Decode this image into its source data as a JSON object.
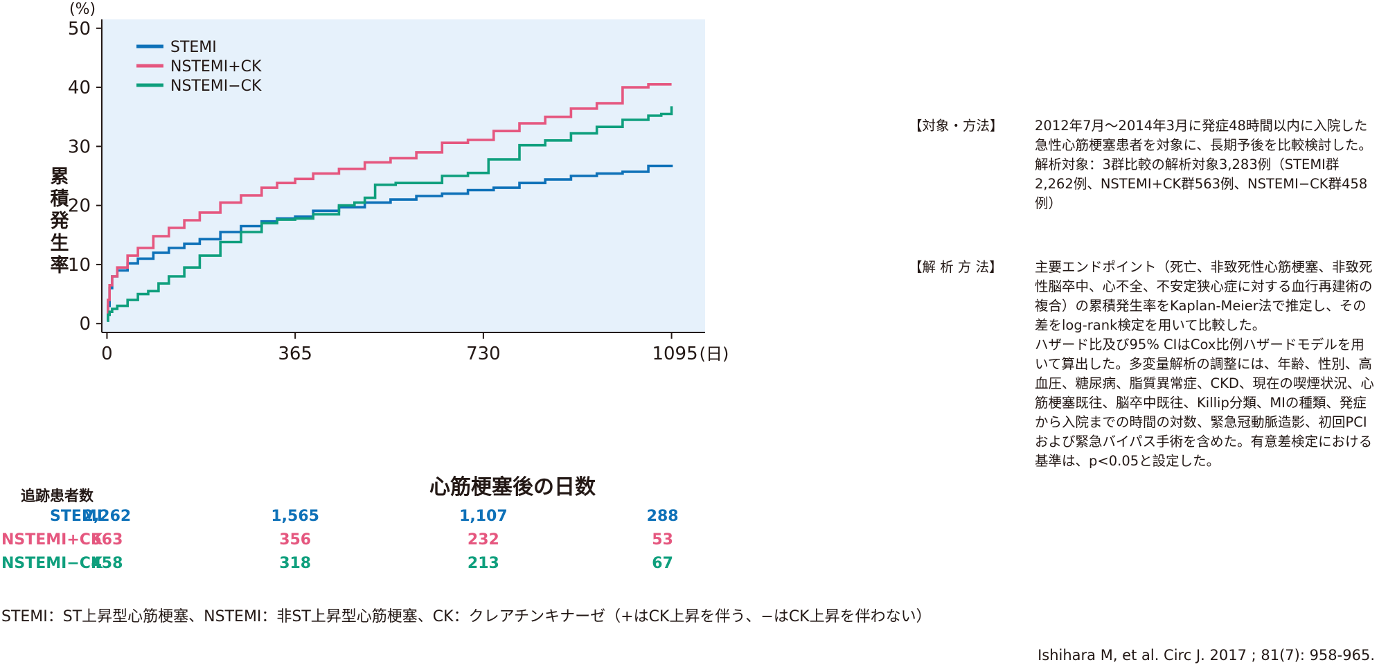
{
  "chart_data": {
    "type": "line",
    "ylabel": "累積発生率",
    "yunit": "(%)",
    "xlabel": "心筋梗塞後の日数",
    "xunit": "(日)",
    "xticks": [
      0,
      365,
      730,
      1095
    ],
    "yticks": [
      0,
      10,
      20,
      30,
      40,
      50
    ],
    "xlim": [
      -10,
      1160
    ],
    "ylim": [
      -1.5,
      51.5
    ],
    "grid": false,
    "legend": "top-left",
    "plot_background": "#e6f1fb",
    "series": [
      {
        "name": "STEMI",
        "color": "#0e71b8",
        "x": [
          0,
          2,
          5,
          10,
          20,
          40,
          60,
          90,
          120,
          150,
          180,
          220,
          260,
          300,
          330,
          365,
          400,
          450,
          500,
          550,
          600,
          650,
          700,
          750,
          800,
          850,
          900,
          950,
          1000,
          1050,
          1095
        ],
        "y": [
          0.5,
          3,
          6,
          8,
          9,
          10.2,
          11,
          12,
          12.8,
          13.5,
          14.3,
          15.5,
          16.5,
          17.3,
          17.8,
          18.1,
          19.1,
          19.7,
          20.5,
          21,
          21.6,
          22,
          22.6,
          23,
          23.8,
          24.4,
          25,
          25.4,
          25.7,
          26.7,
          26.9
        ]
      },
      {
        "name": "NSTEMI+CK",
        "color": "#e5577f",
        "x": [
          0,
          2,
          5,
          10,
          20,
          40,
          60,
          90,
          120,
          150,
          180,
          220,
          260,
          300,
          330,
          365,
          400,
          450,
          500,
          550,
          600,
          650,
          700,
          750,
          800,
          850,
          900,
          950,
          1000,
          1050,
          1075,
          1095
        ],
        "y": [
          1.5,
          4,
          6.5,
          8,
          9.5,
          11.5,
          12.8,
          14.8,
          16.2,
          17.5,
          18.8,
          20.5,
          21.7,
          23,
          23.8,
          24.5,
          25.4,
          26.2,
          27.3,
          28,
          29,
          30.6,
          31.1,
          32.6,
          33.9,
          35,
          36.4,
          37.3,
          40,
          40.5,
          40.5,
          40.5
        ]
      },
      {
        "name": "NSTEMI−CK",
        "color": "#0f9f7d",
        "x": [
          0,
          2,
          5,
          10,
          20,
          40,
          60,
          80,
          100,
          120,
          150,
          180,
          220,
          260,
          300,
          330,
          365,
          400,
          450,
          480,
          500,
          520,
          560,
          600,
          650,
          700,
          740,
          800,
          850,
          900,
          950,
          1000,
          1050,
          1075,
          1095
        ],
        "y": [
          0.5,
          1.5,
          2,
          2.5,
          3,
          4,
          5,
          5.5,
          6.8,
          8,
          9.5,
          11.5,
          13.8,
          15.5,
          17,
          17.6,
          17.8,
          18.5,
          20,
          20.5,
          21.3,
          23.5,
          23.8,
          23.8,
          25,
          25.5,
          27.8,
          30.2,
          31,
          32.2,
          33.3,
          34.5,
          35.2,
          35.5,
          36.8
        ]
      }
    ]
  },
  "followup": {
    "title": "追跡患者数",
    "rows": [
      {
        "name": "STEMI",
        "values": [
          "2,262",
          "1,565",
          "1,107",
          "288"
        ]
      },
      {
        "name": "NSTEMI+CK",
        "values": [
          "563",
          "356",
          "232",
          "53"
        ]
      },
      {
        "name": "NSTEMI−CK",
        "values": [
          "458",
          "318",
          "213",
          "67"
        ]
      }
    ]
  },
  "methods": [
    {
      "heading": "【対象・方法】",
      "paragraphs": [
        "2012年7月〜2014年3月に発症48時間以内に入院した急性心筋梗塞患者を対象に、長期予後を比較検討した。",
        "解析対象：3群比較の解析対象3,283例（STEMI群2,262例、NSTEMI+CK群563例、NSTEMI−CK群458例）"
      ]
    },
    {
      "heading": "【解 析 方 法】",
      "paragraphs": [
        "主要エンドポイント（死亡、非致死性心筋梗塞、非致死性脳卒中、心不全、不安定狭心症に対する血行再建術の複合）の累積発生率をKaplan-Meier法で推定し、その差をlog-rank検定を用いて比較した。",
        "ハザード比及び95% CIはCox比例ハザードモデルを用いて算出した。多変量解析の調整には、年齢、性別、高血圧、糖尿病、脂質異常症、CKD、現在の喫煙状況、心筋梗塞既往、脳卒中既往、Killip分類、MIの種類、発症から入院までの時間の対数、緊急冠動脈造影、初回PCIおよび緊急バイパス手術を含めた。有意差検定における基準は、p<0.05と設定した。"
      ]
    }
  ],
  "footnote": "STEMI：ST上昇型心筋梗塞、NSTEMI：非ST上昇型心筋梗塞、CK：クレアチンキナーゼ（+はCK上昇を伴う、−はCK上昇を伴わない）",
  "citation": "Ishihara M, et al. Circ J. 2017 ; 81(7): 958-965."
}
